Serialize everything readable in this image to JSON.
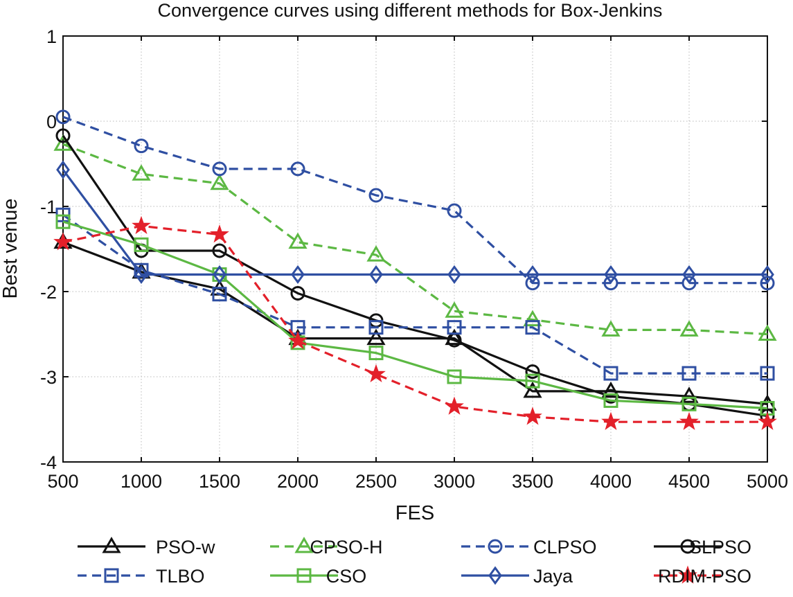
{
  "chart_data": {
    "type": "line",
    "title": "Convergence curves using different methods for Box-Jenkins",
    "xlabel": "FES",
    "ylabel": "Best venue",
    "x": [
      500,
      1000,
      1500,
      2000,
      2500,
      3000,
      3500,
      4000,
      4500,
      5000
    ],
    "xticks": [
      "500",
      "1000",
      "1500",
      "2000",
      "2500",
      "3000",
      "3500",
      "4000",
      "4500",
      "5000"
    ],
    "yticks": [
      "1",
      "0",
      "-1",
      "-2",
      "-3",
      "-4"
    ],
    "xlim": [
      500,
      5000
    ],
    "ylim": [
      -4,
      1
    ],
    "grid": true,
    "legend_position": "bottom",
    "series": [
      {
        "name": "PSO-w",
        "color": "#111111",
        "dash": "solid",
        "marker": "triangle",
        "values": [
          -1.42,
          -1.77,
          -1.97,
          -2.55,
          -2.55,
          -2.55,
          -3.17,
          -3.17,
          -3.23,
          -3.32
        ]
      },
      {
        "name": "CPSO-H",
        "color": "#5cb843",
        "dash": "dashed",
        "marker": "triangle",
        "values": [
          -0.27,
          -0.62,
          -0.73,
          -1.42,
          -1.57,
          -2.23,
          -2.33,
          -2.45,
          -2.45,
          -2.5
        ]
      },
      {
        "name": "CLPSO",
        "color": "#2f4fa2",
        "dash": "dashed",
        "marker": "circle",
        "values": [
          0.05,
          -0.29,
          -0.56,
          -0.56,
          -0.87,
          -1.05,
          -1.9,
          -1.9,
          -1.9,
          -1.9
        ]
      },
      {
        "name": "SLPSO",
        "color": "#111111",
        "dash": "solid",
        "marker": "circle",
        "values": [
          -0.17,
          -1.52,
          -1.52,
          -2.02,
          -2.34,
          -2.57,
          -2.94,
          -3.23,
          -3.32,
          -3.46
        ]
      },
      {
        "name": "TLBO",
        "color": "#2f4fa2",
        "dash": "dashed",
        "marker": "square",
        "values": [
          -1.1,
          -1.75,
          -2.03,
          -2.42,
          -2.42,
          -2.42,
          -2.42,
          -2.96,
          -2.96,
          -2.96
        ]
      },
      {
        "name": "CSO",
        "color": "#5cb843",
        "dash": "solid",
        "marker": "square",
        "values": [
          -1.18,
          -1.45,
          -1.8,
          -2.6,
          -2.72,
          -3.0,
          -3.05,
          -3.28,
          -3.32,
          -3.37
        ]
      },
      {
        "name": "Jaya",
        "color": "#2f4fa2",
        "dash": "solid",
        "marker": "diamond",
        "values": [
          -0.57,
          -1.8,
          -1.8,
          -1.8,
          -1.8,
          -1.8,
          -1.8,
          -1.8,
          -1.8,
          -1.8
        ]
      },
      {
        "name": "RDIM-PSO",
        "color": "#e3202a",
        "dash": "dashed",
        "marker": "star",
        "values": [
          -1.42,
          -1.23,
          -1.33,
          -2.58,
          -2.97,
          -3.35,
          -3.47,
          -3.53,
          -3.53,
          -3.53
        ]
      }
    ]
  }
}
